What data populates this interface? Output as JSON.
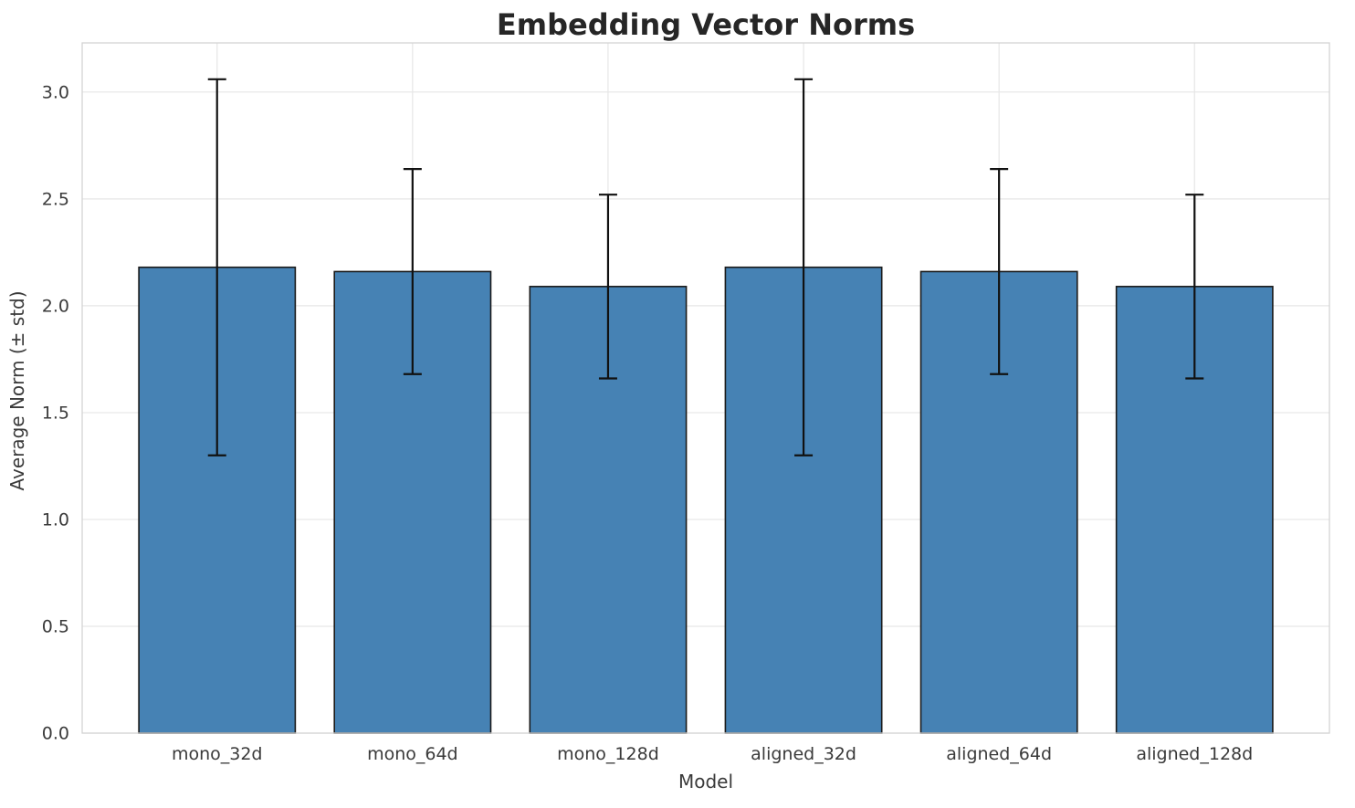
{
  "chart_data": {
    "type": "bar",
    "title": "Embedding Vector Norms",
    "xlabel": "Model",
    "ylabel": "Average Norm (± std)",
    "categories": [
      "mono_32d",
      "mono_64d",
      "mono_128d",
      "aligned_32d",
      "aligned_64d",
      "aligned_128d"
    ],
    "values": [
      2.18,
      2.16,
      2.09,
      2.18,
      2.16,
      2.09
    ],
    "errors": [
      0.88,
      0.48,
      0.43,
      0.88,
      0.48,
      0.43
    ],
    "yticks": [
      0.0,
      0.5,
      1.0,
      1.5,
      2.0,
      2.5,
      3.0
    ],
    "ylim": [
      0,
      3.23
    ],
    "grid": true,
    "legend": "none",
    "colors": {
      "bar_fill": "#4682b4",
      "bar_edge": "#1a1a1a",
      "error_bar": "#111111",
      "grid_line": "#e6e6e6",
      "plot_border": "#d4d4d4",
      "tick_text": "#3a3a3a",
      "title_text": "#262626",
      "background": "#ffffff"
    }
  }
}
